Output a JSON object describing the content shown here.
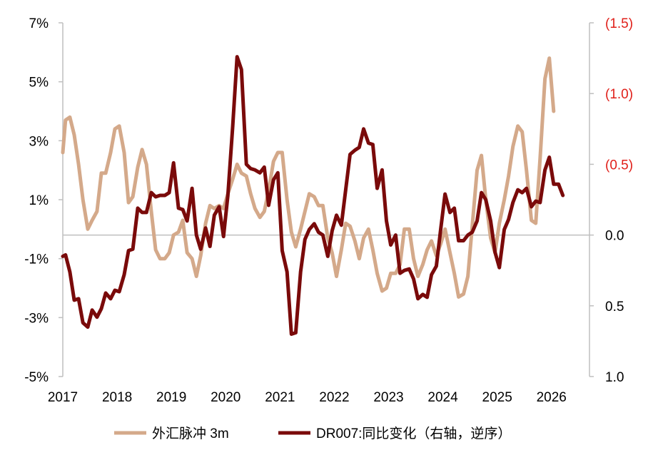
{
  "chart_data": {
    "type": "line",
    "title": "",
    "legend_position": "bottom",
    "grid": false,
    "colors": {
      "fx_pulse": "#d4a98a",
      "dr007": "#7a0a0a",
      "right_axis_positive": "#e0201a",
      "right_axis_other": "#000000"
    },
    "x_axis": {
      "range": [
        2017.0,
        2026.7
      ],
      "tick_values": [
        2017,
        2018,
        2019,
        2020,
        2021,
        2022,
        2023,
        2024,
        2025,
        2026
      ],
      "tick_labels": [
        "2017",
        "2018",
        "2019",
        "2020",
        "2021",
        "2022",
        "2023",
        "2024",
        "2025",
        "2026"
      ]
    },
    "y_left": {
      "range": [
        -5,
        7
      ],
      "tick_values": [
        7,
        5,
        3,
        1,
        -1,
        -3,
        -5
      ],
      "tick_labels": [
        "7%",
        "5%",
        "3%",
        "1%",
        "-1%",
        "-3%",
        "-5%"
      ]
    },
    "y_right": {
      "reversed": true,
      "range": [
        -1.5,
        1.0
      ],
      "tick_values": [
        -1.5,
        -1.0,
        -0.5,
        0.0,
        0.5,
        1.0
      ],
      "tick_labels": [
        "(1.5)",
        "(1.0)",
        "(0.5)",
        "0.0",
        "0.5",
        "1.0"
      ],
      "negative_label_color": "#e0201a"
    },
    "series": [
      {
        "name": "外汇脉冲 3m",
        "axis": "left",
        "points": [
          [
            2017.0,
            2.6
          ],
          [
            2017.05,
            3.7
          ],
          [
            2017.13,
            3.8
          ],
          [
            2017.21,
            3.2
          ],
          [
            2017.29,
            2.2
          ],
          [
            2017.37,
            1.0
          ],
          [
            2017.46,
            0.0
          ],
          [
            2017.54,
            0.3
          ],
          [
            2017.63,
            0.6
          ],
          [
            2017.71,
            1.9
          ],
          [
            2017.79,
            1.9
          ],
          [
            2017.88,
            2.6
          ],
          [
            2017.96,
            3.4
          ],
          [
            2018.04,
            3.5
          ],
          [
            2018.13,
            2.6
          ],
          [
            2018.21,
            0.9
          ],
          [
            2018.29,
            1.1
          ],
          [
            2018.38,
            2.1
          ],
          [
            2018.46,
            2.7
          ],
          [
            2018.54,
            2.2
          ],
          [
            2018.63,
            0.6
          ],
          [
            2018.71,
            -0.7
          ],
          [
            2018.79,
            -1.0
          ],
          [
            2018.88,
            -1.0
          ],
          [
            2018.96,
            -0.8
          ],
          [
            2019.04,
            -0.2
          ],
          [
            2019.13,
            -0.1
          ],
          [
            2019.21,
            0.3
          ],
          [
            2019.29,
            -0.8
          ],
          [
            2019.38,
            -1.0
          ],
          [
            2019.46,
            -1.6
          ],
          [
            2019.54,
            -0.9
          ],
          [
            2019.63,
            0.2
          ],
          [
            2019.71,
            0.8
          ],
          [
            2019.79,
            0.7
          ],
          [
            2019.88,
            0.8
          ],
          [
            2019.96,
            0.7
          ],
          [
            2020.04,
            1.2
          ],
          [
            2020.13,
            1.7
          ],
          [
            2020.21,
            2.2
          ],
          [
            2020.29,
            1.9
          ],
          [
            2020.38,
            1.8
          ],
          [
            2020.46,
            1.2
          ],
          [
            2020.54,
            0.7
          ],
          [
            2020.63,
            0.4
          ],
          [
            2020.71,
            0.6
          ],
          [
            2020.79,
            1.3
          ],
          [
            2020.88,
            2.3
          ],
          [
            2020.96,
            2.6
          ],
          [
            2021.04,
            2.6
          ],
          [
            2021.13,
            1.0
          ],
          [
            2021.21,
            -0.1
          ],
          [
            2021.29,
            -0.6
          ],
          [
            2021.38,
            0.0
          ],
          [
            2021.46,
            0.6
          ],
          [
            2021.54,
            1.2
          ],
          [
            2021.63,
            1.1
          ],
          [
            2021.71,
            0.8
          ],
          [
            2021.79,
            0.8
          ],
          [
            2021.88,
            -0.3
          ],
          [
            2021.96,
            -0.8
          ],
          [
            2022.04,
            -1.6
          ],
          [
            2022.13,
            -0.7
          ],
          [
            2022.21,
            0.2
          ],
          [
            2022.29,
            0.1
          ],
          [
            2022.38,
            -0.4
          ],
          [
            2022.46,
            -1.0
          ],
          [
            2022.54,
            -0.3
          ],
          [
            2022.63,
            0.0
          ],
          [
            2022.71,
            -0.7
          ],
          [
            2022.79,
            -1.5
          ],
          [
            2022.88,
            -2.1
          ],
          [
            2022.96,
            -2.0
          ],
          [
            2023.04,
            -1.5
          ],
          [
            2023.13,
            -1.5
          ],
          [
            2023.21,
            -1.2
          ],
          [
            2023.29,
            0.0
          ],
          [
            2023.38,
            0.0
          ],
          [
            2023.46,
            -1.0
          ],
          [
            2023.54,
            -1.6
          ],
          [
            2023.63,
            -1.2
          ],
          [
            2023.71,
            -0.7
          ],
          [
            2023.79,
            -0.4
          ],
          [
            2023.88,
            -0.9
          ],
          [
            2023.96,
            -0.5
          ],
          [
            2024.04,
            0.0
          ],
          [
            2024.13,
            -0.8
          ],
          [
            2024.21,
            -1.5
          ],
          [
            2024.29,
            -2.3
          ],
          [
            2024.38,
            -2.2
          ],
          [
            2024.46,
            -1.6
          ],
          [
            2024.54,
            0.1
          ],
          [
            2024.63,
            2.0
          ],
          [
            2024.71,
            2.5
          ],
          [
            2024.79,
            1.0
          ],
          [
            2024.88,
            -0.3
          ],
          [
            2024.96,
            -0.8
          ],
          [
            2025.04,
            0.2
          ],
          [
            2025.13,
            1.0
          ],
          [
            2025.21,
            1.8
          ],
          [
            2025.29,
            2.8
          ],
          [
            2025.38,
            3.5
          ],
          [
            2025.46,
            3.3
          ],
          [
            2025.54,
            2.0
          ],
          [
            2025.63,
            0.3
          ],
          [
            2025.71,
            0.2
          ],
          [
            2025.79,
            2.4
          ],
          [
            2025.88,
            5.1
          ],
          [
            2025.96,
            5.8
          ],
          [
            2026.04,
            4.0
          ]
        ]
      },
      {
        "name": "DR007:同比变化（右轴，逆序）",
        "axis": "right",
        "points": [
          [
            2017.0,
            0.15
          ],
          [
            2017.05,
            0.14
          ],
          [
            2017.13,
            0.26
          ],
          [
            2017.21,
            0.46
          ],
          [
            2017.29,
            0.45
          ],
          [
            2017.37,
            0.62
          ],
          [
            2017.46,
            0.65
          ],
          [
            2017.54,
            0.53
          ],
          [
            2017.63,
            0.58
          ],
          [
            2017.71,
            0.52
          ],
          [
            2017.79,
            0.41
          ],
          [
            2017.88,
            0.45
          ],
          [
            2017.96,
            0.39
          ],
          [
            2018.04,
            0.4
          ],
          [
            2018.13,
            0.28
          ],
          [
            2018.21,
            0.11
          ],
          [
            2018.29,
            0.1
          ],
          [
            2018.38,
            -0.19
          ],
          [
            2018.46,
            -0.16
          ],
          [
            2018.54,
            -0.16
          ],
          [
            2018.63,
            -0.3
          ],
          [
            2018.71,
            -0.27
          ],
          [
            2018.79,
            -0.28
          ],
          [
            2018.88,
            -0.28
          ],
          [
            2018.96,
            -0.3
          ],
          [
            2019.04,
            -0.51
          ],
          [
            2019.13,
            -0.19
          ],
          [
            2019.21,
            -0.18
          ],
          [
            2019.29,
            -0.1
          ],
          [
            2019.38,
            -0.33
          ],
          [
            2019.46,
            0.0
          ],
          [
            2019.54,
            0.1
          ],
          [
            2019.63,
            -0.05
          ],
          [
            2019.71,
            0.08
          ],
          [
            2019.79,
            -0.14
          ],
          [
            2019.88,
            -0.2
          ],
          [
            2019.96,
            0.01
          ],
          [
            2020.04,
            -0.28
          ],
          [
            2020.13,
            -0.77
          ],
          [
            2020.21,
            -1.26
          ],
          [
            2020.29,
            -1.17
          ],
          [
            2020.38,
            -0.5
          ],
          [
            2020.46,
            -0.47
          ],
          [
            2020.54,
            -0.46
          ],
          [
            2020.63,
            -0.44
          ],
          [
            2020.71,
            -0.48
          ],
          [
            2020.79,
            -0.21
          ],
          [
            2020.88,
            -0.39
          ],
          [
            2020.96,
            -0.44
          ],
          [
            2021.04,
            0.11
          ],
          [
            2021.13,
            0.26
          ],
          [
            2021.21,
            0.7
          ],
          [
            2021.29,
            0.69
          ],
          [
            2021.38,
            0.26
          ],
          [
            2021.46,
            0.03
          ],
          [
            2021.54,
            -0.04
          ],
          [
            2021.63,
            -0.08
          ],
          [
            2021.71,
            -0.02
          ],
          [
            2021.79,
            0.0
          ],
          [
            2021.88,
            0.15
          ],
          [
            2021.96,
            -0.03
          ],
          [
            2022.04,
            -0.14
          ],
          [
            2022.13,
            -0.07
          ],
          [
            2022.21,
            -0.32
          ],
          [
            2022.29,
            -0.57
          ],
          [
            2022.38,
            -0.6
          ],
          [
            2022.46,
            -0.62
          ],
          [
            2022.54,
            -0.75
          ],
          [
            2022.63,
            -0.65
          ],
          [
            2022.71,
            -0.64
          ],
          [
            2022.79,
            -0.33
          ],
          [
            2022.88,
            -0.46
          ],
          [
            2022.96,
            -0.1
          ],
          [
            2023.04,
            0.07
          ],
          [
            2023.13,
            0.0
          ],
          [
            2023.21,
            0.27
          ],
          [
            2023.29,
            0.25
          ],
          [
            2023.38,
            0.24
          ],
          [
            2023.46,
            0.31
          ],
          [
            2023.54,
            0.45
          ],
          [
            2023.63,
            0.42
          ],
          [
            2023.71,
            0.44
          ],
          [
            2023.79,
            0.28
          ],
          [
            2023.88,
            0.22
          ],
          [
            2023.96,
            -0.04
          ],
          [
            2024.04,
            -0.29
          ],
          [
            2024.13,
            -0.16
          ],
          [
            2024.21,
            -0.19
          ],
          [
            2024.29,
            0.04
          ],
          [
            2024.38,
            0.04
          ],
          [
            2024.46,
            0.0
          ],
          [
            2024.54,
            -0.02
          ],
          [
            2024.63,
            -0.1
          ],
          [
            2024.71,
            -0.3
          ],
          [
            2024.79,
            -0.25
          ],
          [
            2024.88,
            -0.1
          ],
          [
            2024.96,
            0.12
          ],
          [
            2025.04,
            0.23
          ],
          [
            2025.13,
            -0.04
          ],
          [
            2025.21,
            -0.11
          ],
          [
            2025.29,
            -0.23
          ],
          [
            2025.38,
            -0.32
          ],
          [
            2025.46,
            -0.3
          ],
          [
            2025.54,
            -0.33
          ],
          [
            2025.63,
            -0.2
          ],
          [
            2025.71,
            -0.24
          ],
          [
            2025.79,
            -0.23
          ],
          [
            2025.88,
            -0.46
          ],
          [
            2025.96,
            -0.55
          ],
          [
            2026.04,
            -0.36
          ],
          [
            2026.13,
            -0.36
          ],
          [
            2026.21,
            -0.28
          ]
        ]
      }
    ]
  }
}
